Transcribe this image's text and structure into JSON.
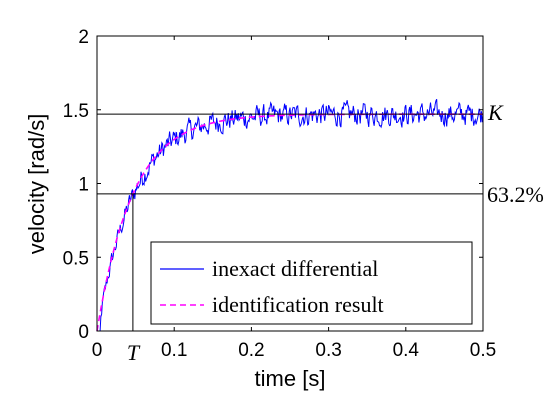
{
  "chart_data": {
    "type": "line",
    "xlabel": "time [s]",
    "ylabel": "velocity [rad/s]",
    "xlim": [
      0,
      0.5
    ],
    "ylim": [
      0,
      2
    ],
    "xticks": [
      0,
      0.1,
      0.2,
      0.3,
      0.4,
      0.5
    ],
    "xtick_labels": [
      "0",
      "0.1",
      "0.2",
      "0.3",
      "0.4",
      "0.5"
    ],
    "yticks": [
      0,
      0.5,
      1,
      1.5,
      2
    ],
    "ytick_labels": [
      "0",
      "0.5",
      "1",
      "1.5",
      "2"
    ],
    "grid": false,
    "legend_position": "bottom-right",
    "reference_lines": [
      {
        "axis": "y",
        "value": 1.47,
        "label": "K"
      },
      {
        "axis": "y",
        "value": 0.93,
        "label": "63.2%"
      },
      {
        "axis": "x",
        "value": 0.0465,
        "label": "T"
      }
    ],
    "series": [
      {
        "name": "inexact differential",
        "color": "#0000ff",
        "style": "solid",
        "model": "noisy first-order step response",
        "K": 1.47,
        "T": 0.0465,
        "noise_amplitude": 0.12,
        "dt": 0.001
      },
      {
        "name": "identification result",
        "color": "#ff00ff",
        "style": "dashed",
        "model": "first-order step response",
        "K": 1.47,
        "T": 0.0465
      }
    ]
  }
}
